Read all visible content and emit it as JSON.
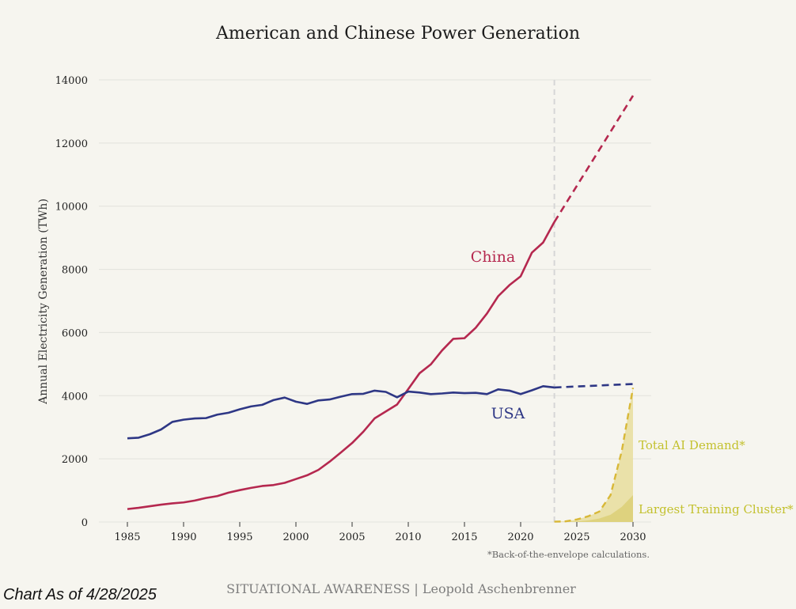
{
  "chart_data": {
    "type": "line",
    "title": "American and Chinese Power Generation",
    "ylabel": "Annual Electricity Generation (TWh)",
    "xlabel": "",
    "xlim": [
      1985,
      2030
    ],
    "ylim": [
      0,
      14000
    ],
    "x_ticks": [
      1985,
      1990,
      1995,
      2000,
      2005,
      2010,
      2015,
      2020,
      2025,
      2030
    ],
    "y_ticks": [
      0,
      2000,
      4000,
      6000,
      8000,
      10000,
      12000,
      14000
    ],
    "grid": true,
    "projection_start_year": 2023,
    "colors": {
      "china": "#b5284f",
      "usa": "#2e3785",
      "ai": "#d8b838",
      "ai_fill": "#e8dd9c",
      "ai_fill_inner": "#ddd079",
      "divider": "#d6d6d6",
      "grid": "#e2e2dc"
    },
    "series": [
      {
        "name": "China",
        "style": "solid",
        "x": [
          1985,
          1986,
          1987,
          1988,
          1989,
          1990,
          1991,
          1992,
          1993,
          1994,
          1995,
          1996,
          1997,
          1998,
          1999,
          2000,
          2001,
          2002,
          2003,
          2004,
          2005,
          2006,
          2007,
          2008,
          2009,
          2010,
          2011,
          2012,
          2013,
          2014,
          2015,
          2016,
          2017,
          2018,
          2019,
          2020,
          2021,
          2022,
          2023
        ],
        "values": [
          410,
          450,
          500,
          550,
          590,
          620,
          680,
          760,
          820,
          930,
          1010,
          1080,
          1140,
          1170,
          1240,
          1360,
          1480,
          1650,
          1910,
          2200,
          2500,
          2860,
          3280,
          3500,
          3720,
          4210,
          4710,
          4990,
          5430,
          5800,
          5820,
          6150,
          6600,
          7150,
          7500,
          7780,
          8530,
          8850,
          9500
        ]
      },
      {
        "name": "China projection",
        "style": "dashed",
        "x": [
          2023,
          2030
        ],
        "values": [
          9500,
          13500
        ]
      },
      {
        "name": "USA",
        "style": "solid",
        "x": [
          1985,
          1986,
          1987,
          1988,
          1989,
          1990,
          1991,
          1992,
          1993,
          1994,
          1995,
          1996,
          1997,
          1998,
          1999,
          2000,
          2001,
          2002,
          2003,
          2004,
          2005,
          2006,
          2007,
          2008,
          2009,
          2010,
          2011,
          2012,
          2013,
          2014,
          2015,
          2016,
          2017,
          2018,
          2019,
          2020,
          2021,
          2022,
          2023
        ],
        "values": [
          2650,
          2670,
          2780,
          2930,
          3170,
          3240,
          3280,
          3290,
          3400,
          3460,
          3570,
          3660,
          3710,
          3860,
          3940,
          3810,
          3740,
          3850,
          3880,
          3970,
          4050,
          4060,
          4160,
          4120,
          3950,
          4130,
          4100,
          4050,
          4070,
          4100,
          4080,
          4090,
          4050,
          4200,
          4160,
          4050,
          4170,
          4300,
          4260
        ]
      },
      {
        "name": "USA projection",
        "style": "dashed",
        "x": [
          2023,
          2030
        ],
        "values": [
          4260,
          4370
        ]
      },
      {
        "name": "Total AI Demand*",
        "style": "dashed-area",
        "x": [
          2023,
          2024,
          2025,
          2026,
          2027,
          2028,
          2029,
          2030
        ],
        "values": [
          10,
          20,
          80,
          180,
          330,
          850,
          2250,
          4250
        ]
      },
      {
        "name": "Largest Training Cluster*",
        "style": "area",
        "x": [
          2023,
          2024,
          2025,
          2026,
          2027,
          2028,
          2029,
          2030
        ],
        "values": [
          0,
          5,
          20,
          50,
          110,
          230,
          480,
          850
        ]
      }
    ],
    "labels": {
      "china": "China",
      "usa": "USA",
      "total_ai": "Total AI Demand*",
      "largest_cluster": "Largest Training Cluster*"
    },
    "footnote": "*Back-of-the-envelope calculations.",
    "credit": "SITUATIONAL AWARENESS | Leopold Aschenbrenner"
  },
  "as_of": "Chart As of 4/28/2025"
}
